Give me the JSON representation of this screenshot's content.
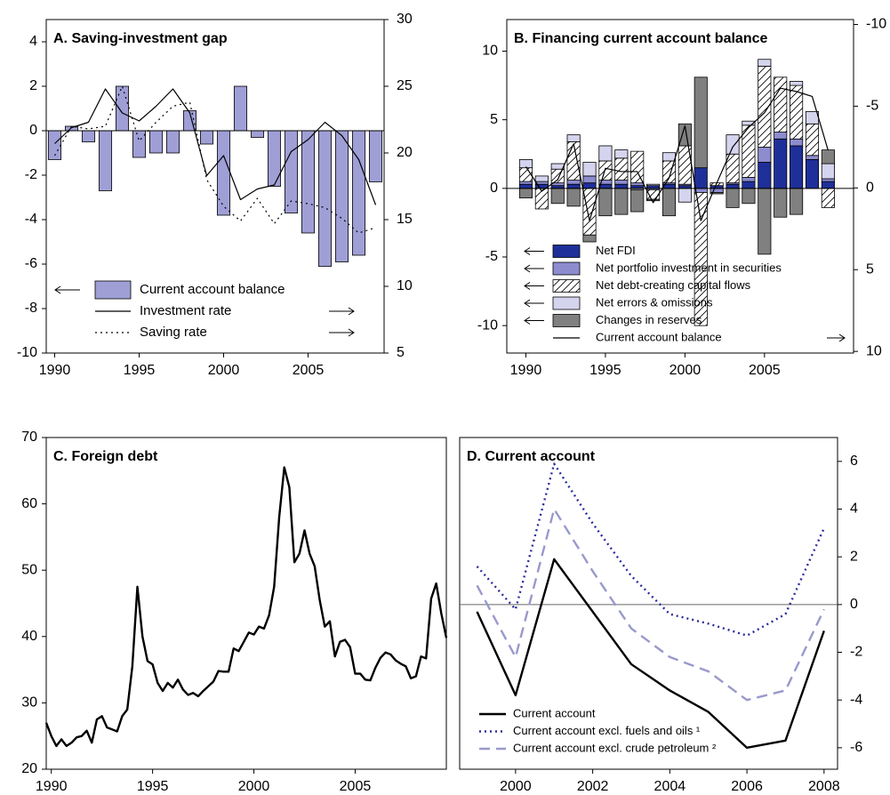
{
  "chart_data": [
    {
      "type": "combo",
      "title": "A. Saving-investment gap",
      "x": [
        1990,
        1991,
        1992,
        1993,
        1994,
        1995,
        1996,
        1997,
        1998,
        1999,
        2000,
        2001,
        2002,
        2003,
        2004,
        2005,
        2006,
        2007,
        2008,
        2009
      ],
      "xlim": [
        1989.5,
        2009.5
      ],
      "xticks": [
        1990,
        1995,
        2000,
        2005
      ],
      "ylim": [
        -10,
        5
      ],
      "yticks": [
        -10,
        -8,
        -6,
        -4,
        -2,
        0,
        2,
        4
      ],
      "y2lim": [
        5,
        30
      ],
      "y2ticks": [
        5,
        10,
        15,
        20,
        25,
        30
      ],
      "zero_line": true,
      "legend": "lower left",
      "series": [
        {
          "name": "Current account balance",
          "type": "bar",
          "color": "#9f9fd6",
          "values": [
            -1.3,
            0.2,
            -0.5,
            -2.7,
            2.0,
            -1.2,
            -1.0,
            -1.0,
            0.9,
            -0.6,
            -3.8,
            2.0,
            -0.3,
            -2.5,
            -3.7,
            -4.6,
            -6.1,
            -5.9,
            -5.6,
            -2.3
          ]
        },
        {
          "name": "Investment rate",
          "type": "line",
          "style": "solid",
          "color": "#000000",
          "axis": "y2",
          "values": [
            20.7,
            21.9,
            22.3,
            24.8,
            23.0,
            22.4,
            23.5,
            24.8,
            23.0,
            18.3,
            19.8,
            16.5,
            17.3,
            17.6,
            20.1,
            21.0,
            22.3,
            21.3,
            19.5,
            16.1
          ]
        },
        {
          "name": "Saving rate",
          "type": "line",
          "style": "dotted",
          "color": "#000000",
          "axis": "y2",
          "values": [
            19.8,
            22.0,
            21.8,
            22.0,
            25.0,
            20.9,
            22.3,
            23.5,
            23.8,
            18.0,
            16.0,
            14.9,
            16.6,
            14.7,
            16.4,
            16.2,
            15.9,
            15.1,
            14.0,
            14.4
          ]
        }
      ]
    },
    {
      "type": "combo",
      "title": "B. Financing current account balance",
      "x": [
        1990,
        1991,
        1992,
        1993,
        1994,
        1995,
        1996,
        1997,
        1998,
        1999,
        2000,
        2001,
        2002,
        2003,
        2004,
        2005,
        2006,
        2007,
        2008,
        2009
      ],
      "xlim": [
        1988.8,
        2010.6
      ],
      "xticks": [
        1990,
        1995,
        2000,
        2005
      ],
      "ylim": [
        -12.0,
        12.3
      ],
      "yticks": [
        -10,
        -5,
        0,
        5,
        10
      ],
      "y2lim": [
        10.1,
        -10.3
      ],
      "y2ticks": [
        10,
        5,
        0,
        -5,
        -10
      ],
      "zero_line": true,
      "stacked": true,
      "legend": "lower left",
      "series": [
        {
          "name": "Net FDI",
          "type": "bar",
          "color": "#1f2f9a",
          "values": [
            0.3,
            0.3,
            0.2,
            0.3,
            0.4,
            0.3,
            0.3,
            0.2,
            0.2,
            0.3,
            0.2,
            1.5,
            0.2,
            0.3,
            0.5,
            1.9,
            3.6,
            3.1,
            2.1,
            0.5
          ]
        },
        {
          "name": "Net portfolio investment in securities",
          "type": "bar",
          "color": "#8c8ccf",
          "values": [
            0.2,
            0.2,
            0.2,
            0.3,
            0.5,
            0.3,
            0.3,
            0.2,
            -0.1,
            0.1,
            0.1,
            -0.3,
            -0.3,
            0.1,
            0.3,
            1.1,
            0.5,
            0.5,
            0.3,
            0.2
          ]
        },
        {
          "name": "Net debt-creating capital flows",
          "type": "bar",
          "color": "#ffffff",
          "pattern": "hatch",
          "values": [
            1.0,
            -1.5,
            1.0,
            2.8,
            -3.4,
            1.4,
            1.6,
            2.3,
            -0.7,
            1.6,
            2.8,
            -9.7,
            0.2,
            2.1,
            3.8,
            5.9,
            4.0,
            3.9,
            2.3,
            -1.4
          ]
        },
        {
          "name": "Net errors & omissions",
          "type": "bar",
          "color": "#d4d4ee",
          "values": [
            0.6,
            0.4,
            0.4,
            0.5,
            1.0,
            1.1,
            0.6,
            -0.1,
            0.1,
            0.6,
            -1.0,
            0.0,
            0.0,
            1.4,
            0.3,
            0.5,
            0.0,
            0.3,
            0.9,
            1.1
          ]
        },
        {
          "name": "Changes in reserves",
          "type": "bar",
          "color": "#808080",
          "values": [
            -0.7,
            0.0,
            -1.1,
            -1.3,
            -0.5,
            -2.0,
            -1.9,
            -1.6,
            -0.1,
            -2.0,
            1.6,
            6.6,
            -0.1,
            -1.4,
            -1.1,
            -4.8,
            -2.1,
            -1.9,
            0.0,
            1.0
          ]
        },
        {
          "name": "Current account balance",
          "type": "line",
          "style": "solid",
          "color": "#000000",
          "axis": "y2",
          "values": [
            -1.3,
            0.2,
            -0.5,
            -2.7,
            2.0,
            -1.2,
            -1.0,
            -1.0,
            0.9,
            -0.6,
            -3.8,
            2.0,
            -0.3,
            -2.5,
            -3.7,
            -4.6,
            -6.1,
            -5.9,
            -5.6,
            -2.3
          ]
        }
      ]
    },
    {
      "type": "line",
      "title": "C. Foreign debt",
      "x": [
        1989.75,
        1990,
        1990.25,
        1990.5,
        1990.75,
        1991,
        1991.25,
        1991.5,
        1991.75,
        1992,
        1992.25,
        1992.5,
        1992.75,
        1993,
        1993.25,
        1993.5,
        1993.75,
        1994,
        1994.25,
        1994.5,
        1994.75,
        1995,
        1995.25,
        1995.5,
        1995.75,
        1996,
        1996.25,
        1996.5,
        1996.75,
        1997,
        1997.25,
        1997.5,
        1997.75,
        1998,
        1998.25,
        1998.5,
        1998.75,
        1999,
        1999.25,
        1999.5,
        1999.75,
        2000,
        2000.25,
        2000.5,
        2000.75,
        2001,
        2001.25,
        2001.5,
        2001.75,
        2002,
        2002.25,
        2002.5,
        2002.75,
        2003,
        2003.25,
        2003.5,
        2003.75,
        2004,
        2004.25,
        2004.5,
        2004.75,
        2005,
        2005.25,
        2005.5,
        2005.75,
        2006,
        2006.25,
        2006.5,
        2006.75,
        2007,
        2007.25,
        2007.5,
        2007.75,
        2008,
        2008.25,
        2008.5,
        2008.75,
        2009,
        2009.25,
        2009.5
      ],
      "xlim": [
        1989.75,
        2009.5
      ],
      "xticks": [
        1990,
        1995,
        2000,
        2005
      ],
      "ylim": [
        20,
        70
      ],
      "yticks": [
        20,
        30,
        40,
        50,
        60,
        70
      ],
      "series": [
        {
          "name": null,
          "type": "line",
          "style": "solid",
          "color": "#000000",
          "values": [
            27,
            25,
            23.5,
            24.5,
            23.5,
            24,
            24.8,
            25,
            25.8,
            24,
            27.5,
            28,
            26.3,
            26,
            25.7,
            28,
            29,
            35.5,
            47.5,
            40,
            36.3,
            35.8,
            33,
            31.8,
            33,
            32.3,
            33.5,
            32,
            31.2,
            31.5,
            31,
            31.8,
            32.5,
            33.2,
            34.8,
            34.7,
            34.7,
            38.2,
            37.8,
            39.2,
            40.6,
            40.3,
            41.5,
            41.2,
            43.2,
            47.5,
            58,
            65.5,
            62.5,
            51.2,
            52.5,
            56,
            52.5,
            50.6,
            45.5,
            41.5,
            42.3,
            37,
            39.2,
            39.5,
            38.4,
            34.4,
            34.4,
            33.5,
            33.4,
            35.3,
            36.8,
            37.6,
            37.3,
            36.4,
            35.9,
            35.5,
            33.7,
            34,
            37,
            36.7,
            45.7,
            48,
            43.5,
            39.8
          ]
        }
      ]
    },
    {
      "type": "line",
      "title": "D. Current account",
      "x": [
        1999,
        2000,
        2001,
        2002,
        2003,
        2004,
        2005,
        2006,
        2007,
        2008
      ],
      "xlim": [
        1998.55,
        2008.35
      ],
      "xticks": [
        2000,
        2002,
        2004,
        2006,
        2008
      ],
      "ylim": [
        -6.9,
        7.0
      ],
      "yticks": [
        -6,
        -4,
        -2,
        0,
        2,
        4,
        6
      ],
      "y_axis_side": "right",
      "zero_line": true,
      "legend": "lower left",
      "series": [
        {
          "name": "Current account",
          "type": "line",
          "style": "solid",
          "color": "#000000",
          "values": [
            -0.3,
            -3.8,
            1.9,
            -0.3,
            -2.5,
            -3.6,
            -4.5,
            -6.0,
            -5.7,
            -1.1
          ]
        },
        {
          "name": "Current account excl. fuels and oils ¹",
          "type": "line",
          "style": "dotted",
          "color": "#2b2b9b",
          "values": [
            1.6,
            -0.2,
            5.9,
            3.4,
            1.2,
            -0.4,
            -0.8,
            -1.3,
            -0.4,
            3.2
          ]
        },
        {
          "name": "Current account excl. crude petroleum ²",
          "type": "line",
          "style": "dashed",
          "color": "#9999cc",
          "values": [
            0.8,
            -2.2,
            4.0,
            1.4,
            -1.0,
            -2.2,
            -2.8,
            -4.0,
            -3.6,
            -0.2
          ]
        }
      ]
    }
  ]
}
